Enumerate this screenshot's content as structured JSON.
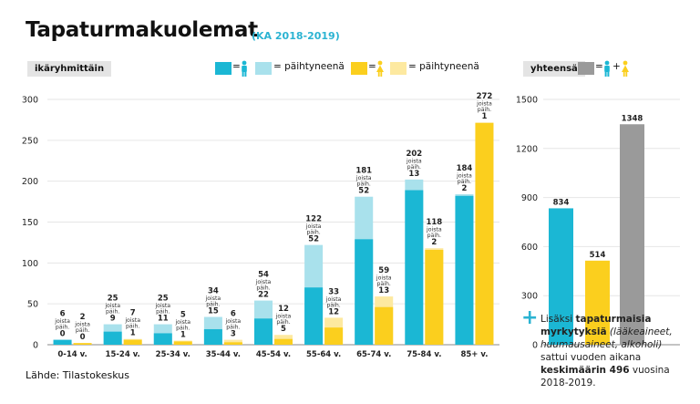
{
  "title": "Tapaturmakuolemat",
  "subtitle": "(KA 2018-2019)",
  "left_pill": "ikäryhmittäin",
  "right_pill": "yhteensä",
  "legend": {
    "eq": "=",
    "plus": "+",
    "paihtyneena": "= päihtyneenä",
    "colors": {
      "male": "#1bb7d4",
      "male_drunk": "#a9e1ec",
      "female": "#fbcf1e",
      "female_drunk": "#fde9a0",
      "total": "#9a9a9a"
    }
  },
  "sublabel_lines": [
    "joista",
    "päih."
  ],
  "source": "Lähde: Tilastokeskus",
  "note": {
    "line1_pre": "Lisäksi ",
    "line1_bold": "tapaturmaisia",
    "line2_bold": "myrkytyksiä",
    "line2_italic": " (lääkeaineet,",
    "line3_italic": "huumausaineet, alkoholi)",
    "line4": "sattui vuoden aikana",
    "line5_bold": "keskimäärin 496",
    "line5_rest": " vuosina",
    "line6": "2018-2019."
  },
  "chart_data": [
    {
      "type": "bar",
      "ylim": [
        0,
        300
      ],
      "yticks": [
        0,
        50,
        100,
        150,
        200,
        250,
        300
      ],
      "categories": [
        "0-14 v.",
        "15-24 v.",
        "25-34 v.",
        "35-44 v.",
        "45-54 v.",
        "55-64 v.",
        "65-74 v.",
        "75-84 v.",
        "85+ v."
      ],
      "series": [
        {
          "name": "miehet",
          "totals": [
            6,
            25,
            25,
            34,
            54,
            122,
            181,
            202,
            184
          ],
          "paihtyneena": [
            0,
            9,
            11,
            15,
            22,
            52,
            52,
            13,
            2
          ]
        },
        {
          "name": "naiset",
          "totals": [
            2,
            7,
            5,
            6,
            12,
            33,
            59,
            118,
            272
          ],
          "paihtyneena": [
            0,
            1,
            1,
            3,
            5,
            12,
            13,
            2,
            1
          ]
        }
      ]
    },
    {
      "type": "bar",
      "ylim": [
        0,
        1500
      ],
      "yticks": [
        0,
        300,
        600,
        900,
        1200,
        1500
      ],
      "values": [
        834,
        514,
        1348
      ],
      "colors": [
        "#1bb7d4",
        "#fbcf1e",
        "#9a9a9a"
      ]
    }
  ]
}
